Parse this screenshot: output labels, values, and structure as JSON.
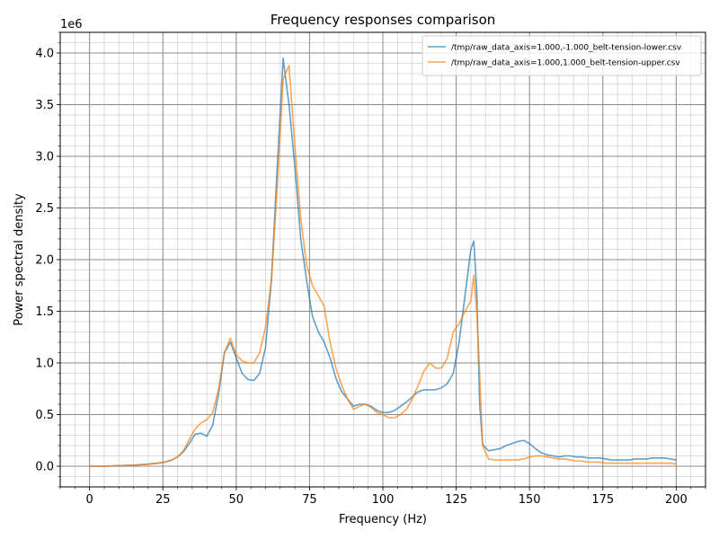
{
  "chart_data": {
    "type": "line",
    "title": "Frequency responses comparison",
    "xlabel": "Frequency (Hz)",
    "ylabel": "Power spectral density",
    "y_offset_label": "1e6",
    "xlim": [
      -10,
      210
    ],
    "ylim": [
      -0.2,
      4.2
    ],
    "xticks": [
      0,
      25,
      50,
      75,
      100,
      125,
      150,
      175,
      200
    ],
    "xtick_labels": [
      "0",
      "25",
      "50",
      "75",
      "100",
      "125",
      "150",
      "175",
      "200"
    ],
    "yticks": [
      0.0,
      0.5,
      1.0,
      1.5,
      2.0,
      2.5,
      3.0,
      3.5,
      4.0
    ],
    "ytick_labels": [
      "0.0",
      "0.5",
      "1.0",
      "1.5",
      "2.0",
      "2.5",
      "3.0",
      "3.5",
      "4.0"
    ],
    "x_minor_step": 5,
    "y_minor_step": 0.1,
    "grid": true,
    "legend_position": "top-right",
    "series": [
      {
        "name": "/tmp/raw_data_axis=1.000,-1.000_belt-tension-lower.csv",
        "color": "#1f77b4",
        "x": [
          0,
          5,
          10,
          15,
          20,
          25,
          28,
          30,
          32,
          34,
          36,
          38,
          40,
          42,
          44,
          46,
          48,
          50,
          52,
          54,
          56,
          58,
          60,
          62,
          64,
          66,
          68,
          70,
          72,
          74,
          76,
          78,
          80,
          82,
          84,
          86,
          88,
          90,
          92,
          94,
          96,
          98,
          100,
          102,
          104,
          106,
          108,
          110,
          112,
          114,
          116,
          118,
          120,
          122,
          124,
          126,
          128,
          130,
          131,
          132,
          133,
          134,
          136,
          138,
          140,
          142,
          144,
          146,
          148,
          150,
          152,
          154,
          156,
          158,
          160,
          162,
          164,
          166,
          168,
          170,
          172,
          174,
          176,
          178,
          180,
          182,
          184,
          186,
          188,
          190,
          192,
          194,
          196,
          198,
          200
        ],
        "y": [
          0.0,
          0.0,
          0.005,
          0.01,
          0.02,
          0.035,
          0.06,
          0.09,
          0.14,
          0.22,
          0.31,
          0.32,
          0.29,
          0.4,
          0.7,
          1.1,
          1.2,
          1.05,
          0.9,
          0.84,
          0.83,
          0.9,
          1.15,
          1.8,
          2.9,
          3.95,
          3.5,
          2.9,
          2.2,
          1.8,
          1.45,
          1.3,
          1.2,
          1.05,
          0.85,
          0.72,
          0.65,
          0.58,
          0.6,
          0.6,
          0.58,
          0.54,
          0.52,
          0.52,
          0.54,
          0.58,
          0.62,
          0.67,
          0.72,
          0.74,
          0.74,
          0.74,
          0.76,
          0.8,
          0.9,
          1.2,
          1.65,
          2.1,
          2.18,
          1.7,
          0.6,
          0.21,
          0.15,
          0.16,
          0.17,
          0.2,
          0.22,
          0.24,
          0.25,
          0.22,
          0.17,
          0.13,
          0.11,
          0.1,
          0.09,
          0.1,
          0.1,
          0.09,
          0.09,
          0.08,
          0.08,
          0.08,
          0.07,
          0.06,
          0.06,
          0.06,
          0.06,
          0.07,
          0.07,
          0.07,
          0.08,
          0.08,
          0.08,
          0.07,
          0.06
        ]
      },
      {
        "name": "/tmp/raw_data_axis=1.000,1.000_belt-tension-upper.csv",
        "color": "#ff7f0e",
        "x": [
          0,
          5,
          10,
          15,
          20,
          25,
          28,
          30,
          32,
          34,
          36,
          38,
          40,
          42,
          44,
          46,
          48,
          50,
          52,
          54,
          56,
          58,
          60,
          62,
          64,
          66,
          68,
          70,
          72,
          74,
          76,
          78,
          80,
          82,
          84,
          86,
          88,
          90,
          92,
          94,
          96,
          98,
          100,
          102,
          104,
          106,
          108,
          110,
          112,
          114,
          116,
          118,
          120,
          122,
          124,
          126,
          128,
          130,
          131,
          132,
          133,
          134,
          136,
          138,
          140,
          142,
          144,
          146,
          148,
          150,
          152,
          154,
          156,
          158,
          160,
          162,
          164,
          166,
          168,
          170,
          172,
          174,
          176,
          178,
          180,
          182,
          184,
          186,
          188,
          190,
          192,
          194,
          196,
          198,
          200
        ],
        "y": [
          0.0,
          0.0,
          0.005,
          0.01,
          0.02,
          0.035,
          0.06,
          0.09,
          0.15,
          0.26,
          0.36,
          0.42,
          0.45,
          0.52,
          0.75,
          1.1,
          1.24,
          1.08,
          1.02,
          1.0,
          1.0,
          1.1,
          1.35,
          1.8,
          2.7,
          3.75,
          3.88,
          3.1,
          2.4,
          1.95,
          1.75,
          1.65,
          1.55,
          1.2,
          0.95,
          0.78,
          0.65,
          0.55,
          0.58,
          0.6,
          0.57,
          0.52,
          0.5,
          0.47,
          0.47,
          0.5,
          0.55,
          0.65,
          0.78,
          0.92,
          1.0,
          0.95,
          0.95,
          1.05,
          1.3,
          1.38,
          1.5,
          1.6,
          1.85,
          1.5,
          0.9,
          0.2,
          0.07,
          0.06,
          0.06,
          0.06,
          0.06,
          0.06,
          0.07,
          0.09,
          0.1,
          0.1,
          0.09,
          0.08,
          0.07,
          0.07,
          0.06,
          0.05,
          0.05,
          0.04,
          0.04,
          0.04,
          0.03,
          0.03,
          0.03,
          0.03,
          0.03,
          0.03,
          0.03,
          0.03,
          0.03,
          0.03,
          0.03,
          0.03,
          0.02
        ]
      }
    ]
  }
}
